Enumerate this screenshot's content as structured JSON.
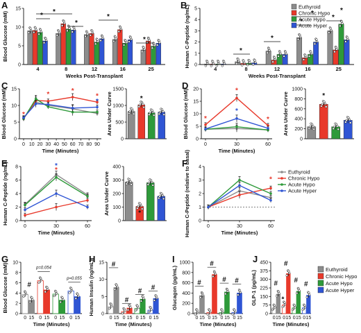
{
  "colors": {
    "Euthyroid": "#8c8c8c",
    "Chronic Hypo": "#e8392b",
    "Acute Hypo": "#2e9a3a",
    "Acute Hyper": "#2f55d4"
  },
  "legend_groups": [
    "Euthyroid",
    "Chronic Hypo",
    "Acute Hypo",
    "Acute Hyper"
  ],
  "chart_data": [
    {
      "panel": "A",
      "type": "bar",
      "ylabel": "Blood Glucose (mM)",
      "xlabel": "Weeks Post-Transplant",
      "ylim": [
        0,
        15
      ],
      "yticks": [
        0,
        5,
        10,
        15
      ],
      "categories": [
        "4",
        "8",
        "12",
        "16",
        "25"
      ],
      "series": [
        {
          "name": "Euthyroid",
          "values": [
            9.0,
            8.3,
            8.0,
            6.7,
            3.9
          ]
        },
        {
          "name": "Chronic Hypo",
          "values": [
            9.1,
            10.9,
            8.3,
            9.3,
            6.3
          ]
        },
        {
          "name": "Acute Hypo",
          "values": [
            8.6,
            9.5,
            6.0,
            5.7,
            4.9
          ]
        },
        {
          "name": "Acute Hyper",
          "values": [
            6.3,
            9.2,
            6.9,
            6.6,
            5.7
          ]
        }
      ],
      "sig_markers": [
        "*",
        "*",
        "*",
        "*",
        "*"
      ]
    },
    {
      "panel": "B",
      "type": "bar",
      "ylabel": "Human C-Peptide (ng/mL)",
      "xlabel": "Weeks Post-Transplant",
      "ylim": [
        0,
        5
      ],
      "yticks": [
        0,
        1,
        2,
        3,
        4,
        5
      ],
      "categories": [
        "4",
        "8",
        "12",
        "16",
        "25"
      ],
      "series": [
        {
          "name": "Euthyroid",
          "values": [
            0.05,
            0.25,
            1.2,
            2.4,
            3.0
          ]
        },
        {
          "name": "Chronic Hypo",
          "values": [
            0.04,
            0.1,
            0.4,
            0.6,
            1.3
          ]
        },
        {
          "name": "Acute Hypo",
          "values": [
            0.05,
            0.12,
            0.9,
            0.9,
            3.6
          ]
        },
        {
          "name": "Acute Hyper",
          "values": [
            0.05,
            0.15,
            0.9,
            2.0,
            2.2
          ]
        }
      ],
      "sig_markers": [
        "*",
        "*",
        "*",
        "*",
        "*",
        "*"
      ]
    },
    {
      "panel": "C",
      "type": "line",
      "ylabel": "Blood Glucose (mM)",
      "xlabel": "Time (Minutes)",
      "ylim": [
        0,
        15
      ],
      "yticks": [
        0,
        5,
        10,
        15
      ],
      "x": [
        0,
        10,
        20,
        30,
        40,
        50,
        60,
        70,
        80,
        90
      ],
      "series": [
        {
          "name": "Euthyroid",
          "x": [
            0,
            15,
            30,
            60,
            90
          ],
          "values": [
            6.2,
            11.0,
            10.0,
            9.0,
            7.6
          ]
        },
        {
          "name": "Chronic Hypo",
          "x": [
            0,
            15,
            30,
            60,
            90
          ],
          "values": [
            6.0,
            11.5,
            11.3,
            12.5,
            11.0
          ]
        },
        {
          "name": "Acute Hypo",
          "x": [
            0,
            15,
            30,
            60,
            90
          ],
          "values": [
            6.0,
            12.0,
            9.6,
            8.0,
            8.0
          ]
        },
        {
          "name": "Acute Hyper",
          "x": [
            0,
            15,
            30,
            60,
            90
          ],
          "values": [
            6.3,
            10.5,
            10.3,
            9.2,
            9.5
          ]
        }
      ],
      "sig_markers": [
        "*",
        "*",
        "*",
        "*",
        "*"
      ]
    },
    {
      "panel": "C-AUC",
      "type": "bar",
      "ylabel": "Area Under Curve",
      "ylim": [
        0,
        1500
      ],
      "yticks": [
        0,
        500,
        1000,
        1500
      ],
      "categories": [
        "Euthyroid",
        "Chronic Hypo",
        "Acute Hypo",
        "Acute Hyper"
      ],
      "values": [
        820,
        1020,
        780,
        800
      ],
      "sig_markers": [
        "*"
      ]
    },
    {
      "panel": "D",
      "type": "line",
      "ylabel": "Blood Glucose (mM)",
      "xlabel": "Time (Minutes)",
      "ylim": [
        0,
        20
      ],
      "yticks": [
        0,
        5,
        10,
        15,
        20
      ],
      "x": [
        0,
        30,
        60
      ],
      "series": [
        {
          "name": "Euthyroid",
          "x": [
            0,
            30,
            60
          ],
          "values": [
            3.8,
            4.1,
            3.6
          ]
        },
        {
          "name": "Chronic Hypo",
          "x": [
            0,
            30,
            60
          ],
          "values": [
            5.6,
            16.3,
            5.3
          ]
        },
        {
          "name": "Acute Hypo",
          "x": [
            0,
            30,
            60
          ],
          "values": [
            3.8,
            4.8,
            3.5
          ]
        },
        {
          "name": "Acute Hyper",
          "x": [
            0,
            30,
            60
          ],
          "values": [
            3.9,
            8.1,
            4.2
          ]
        }
      ],
      "sig_markers": [
        "*",
        "*",
        "*",
        "*"
      ]
    },
    {
      "panel": "D-AUC",
      "type": "bar",
      "ylabel": "Area Under Curve",
      "ylim": [
        0,
        1000
      ],
      "yticks": [
        0,
        200,
        400,
        600,
        800,
        1000
      ],
      "categories": [
        "Euthyroid",
        "Chronic Hypo",
        "Acute Hypo",
        "Acute Hyper"
      ],
      "values": [
        240,
        690,
        240,
        370
      ],
      "sig_markers": [
        "*"
      ]
    },
    {
      "panel": "E",
      "type": "line",
      "ylabel": "Human C-Peptide (ng/mL)",
      "xlabel": "Time (Minutes)",
      "ylim": [
        0,
        8
      ],
      "yticks": [
        0,
        2,
        4,
        6,
        8
      ],
      "x": [
        0,
        30,
        60
      ],
      "series": [
        {
          "name": "Euthyroid",
          "x": [
            0,
            30,
            60
          ],
          "values": [
            2.4,
            6.8,
            3.8
          ]
        },
        {
          "name": "Chronic Hypo",
          "x": [
            0,
            30,
            60
          ],
          "values": [
            0.8,
            2.0,
            3.0
          ]
        },
        {
          "name": "Acute Hypo",
          "x": [
            0,
            30,
            60
          ],
          "values": [
            2.3,
            6.4,
            3.6
          ]
        },
        {
          "name": "Acute Hyper",
          "x": [
            0,
            30,
            60
          ],
          "values": [
            1.6,
            4.0,
            2.0
          ]
        }
      ],
      "sig_markers": [
        "*",
        "*"
      ]
    },
    {
      "panel": "E-AUC",
      "type": "bar",
      "ylabel": "Area Under Curve",
      "ylim": [
        0,
        400
      ],
      "yticks": [
        0,
        100,
        200,
        300,
        400
      ],
      "categories": [
        "Euthyroid",
        "Chronic Hypo",
        "Acute Hypo",
        "Acute Hyper"
      ],
      "values": [
        285,
        105,
        280,
        180
      ],
      "sig_markers": [
        "*"
      ]
    },
    {
      "panel": "F",
      "type": "line",
      "ylabel": "Human C-Peptide (relative to basal)",
      "xlabel": "Time (Minutes)",
      "ylim": [
        0,
        4
      ],
      "yticks": [
        0,
        1,
        2,
        3,
        4
      ],
      "x": [
        0,
        30,
        60
      ],
      "series": [
        {
          "name": "Euthyroid",
          "x": [
            0,
            30,
            60
          ],
          "values": [
            1.0,
            2.2,
            1.7
          ]
        },
        {
          "name": "Chronic Hypo",
          "x": [
            0,
            30,
            60
          ],
          "values": [
            1.0,
            1.9,
            2.4
          ]
        },
        {
          "name": "Acute Hypo",
          "x": [
            0,
            30,
            60
          ],
          "values": [
            1.0,
            3.0,
            2.0
          ]
        },
        {
          "name": "Acute Hyper",
          "x": [
            0,
            30,
            60
          ],
          "values": [
            1.0,
            2.6,
            1.5
          ]
        }
      ],
      "sig_markers": [
        "*"
      ]
    },
    {
      "panel": "G",
      "type": "bar",
      "ylabel": "Blood Glucose (mM)",
      "xlabel": "Time (Minutes)",
      "ylim": [
        0,
        10
      ],
      "yticks": [
        0,
        2,
        4,
        6,
        8,
        10
      ],
      "categories": [
        "0",
        "15",
        "0",
        "15",
        "0",
        "15",
        "0",
        "15"
      ],
      "values": [
        3.7,
        2.6,
        6.4,
        4.6,
        3.8,
        2.6,
        4.4,
        3.3
      ],
      "annotations": [
        "#",
        "p=0.054",
        "p=0.055"
      ]
    },
    {
      "panel": "H",
      "type": "bar",
      "ylabel": "Human Insulin (ng/mL)",
      "xlabel": "Time (Minutes)",
      "ylim": [
        0,
        15
      ],
      "yticks": [
        0,
        5,
        10,
        15
      ],
      "categories": [
        "0",
        "15",
        "0",
        "15",
        "0",
        "15",
        "0",
        "15"
      ],
      "values": [
        2.0,
        7.6,
        0.6,
        1.6,
        1.5,
        4.2,
        1.0,
        4.4
      ],
      "annotations": [
        "#",
        "#",
        "#",
        "#"
      ]
    },
    {
      "panel": "I",
      "type": "bar",
      "ylabel": "Glucagon (pg/mL)",
      "xlabel": "Time (Minutes)",
      "ylim": [
        0,
        1000
      ],
      "yticks": [
        0,
        200,
        400,
        600,
        800,
        1000
      ],
      "categories": [
        "0",
        "15",
        "0",
        "15",
        "0",
        "15",
        "0",
        "15"
      ],
      "values": [
        20,
        350,
        20,
        760,
        20,
        420,
        20,
        400
      ],
      "annotations": [
        "#",
        "#",
        "#",
        "#"
      ]
    },
    {
      "panel": "J",
      "type": "bar",
      "ylabel": "GLP-1 (pg/mL)",
      "xlabel": "Time (Minutes)",
      "ylim": [
        0,
        450
      ],
      "yticks": [
        0,
        75,
        150,
        225,
        300,
        375,
        450
      ],
      "categories": [
        "0",
        "15",
        "0",
        "15",
        "0",
        "15",
        "0",
        "15"
      ],
      "values": [
        50,
        170,
        75,
        350,
        50,
        195,
        50,
        160
      ],
      "annotations": [
        "#",
        "#",
        "*",
        "#",
        "#"
      ]
    }
  ]
}
